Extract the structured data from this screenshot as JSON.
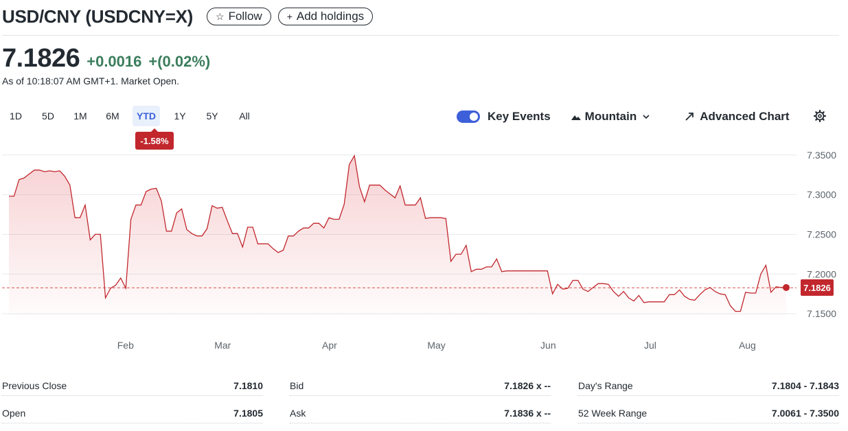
{
  "header": {
    "title": "USD/CNY (USDCNY=X)",
    "follow_label": "Follow",
    "add_holdings_label": "Add holdings"
  },
  "quote": {
    "price": "7.1826",
    "change": "+0.0016",
    "change_pct": "+(0.02%)",
    "as_of": "As of 10:18:07 AM GMT+1. Market Open."
  },
  "range_tabs": [
    "1D",
    "5D",
    "1M",
    "6M",
    "YTD",
    "1Y",
    "5Y",
    "All"
  ],
  "active_range": "YTD",
  "ytd_change_badge": "-1.58%",
  "toolbar": {
    "key_events_label": "Key Events",
    "key_events_on": true,
    "chart_style_label": "Mountain",
    "advanced_chart_label": "Advanced Chart"
  },
  "colors": {
    "line": "#c1272d",
    "positive": "#3a7d5c",
    "accent": "#3d5fd9"
  },
  "chart_data": {
    "type": "area",
    "x_labels": [
      "Feb",
      "Mar",
      "Apr",
      "May",
      "Jun",
      "Jul",
      "Aug"
    ],
    "y_ticks": [
      "7.3500",
      "7.3000",
      "7.2500",
      "7.2000",
      "7.1500"
    ],
    "ylim": [
      7.1475,
      7.355
    ],
    "last_value": "7.1826",
    "reference_line": 7.1826,
    "values": [
      7.298,
      7.298,
      7.319,
      7.321,
      7.326,
      7.331,
      7.331,
      7.329,
      7.33,
      7.329,
      7.33,
      7.323,
      7.312,
      7.271,
      7.271,
      7.287,
      7.243,
      7.25,
      7.25,
      7.17,
      7.182,
      7.186,
      7.195,
      7.182,
      7.269,
      7.287,
      7.287,
      7.304,
      7.307,
      7.308,
      7.292,
      7.254,
      7.254,
      7.277,
      7.282,
      7.256,
      7.251,
      7.248,
      7.248,
      7.257,
      7.286,
      7.283,
      7.284,
      7.267,
      7.251,
      7.251,
      7.234,
      7.259,
      7.259,
      7.238,
      7.238,
      7.238,
      7.232,
      7.227,
      7.23,
      7.248,
      7.248,
      7.254,
      7.258,
      7.258,
      7.264,
      7.264,
      7.258,
      7.271,
      7.269,
      7.269,
      7.288,
      7.338,
      7.349,
      7.31,
      7.291,
      7.312,
      7.312,
      7.312,
      7.306,
      7.301,
      7.296,
      7.311,
      7.287,
      7.287,
      7.287,
      7.296,
      7.27,
      7.271,
      7.271,
      7.271,
      7.27,
      7.216,
      7.225,
      7.225,
      7.236,
      7.203,
      7.206,
      7.206,
      7.209,
      7.209,
      7.219,
      7.203,
      7.204,
      7.204,
      7.204,
      7.204,
      7.204,
      7.204,
      7.204,
      7.204,
      7.204,
      7.175,
      7.187,
      7.181,
      7.182,
      7.192,
      7.192,
      7.181,
      7.178,
      7.183,
      7.188,
      7.188,
      7.187,
      7.178,
      7.172,
      7.178,
      7.17,
      7.166,
      7.173,
      7.164,
      7.165,
      7.165,
      7.165,
      7.165,
      7.174,
      7.174,
      7.18,
      7.172,
      7.168,
      7.167,
      7.174,
      7.18,
      7.183,
      7.178,
      7.175,
      7.174,
      7.16,
      7.153,
      7.153,
      7.177,
      7.176,
      7.176,
      7.2,
      7.211,
      7.177,
      7.184,
      7.183,
      7.183
    ]
  },
  "stats": [
    [
      {
        "label": "Previous Close",
        "value": "7.1810"
      },
      {
        "label": "Open",
        "value": "7.1805"
      }
    ],
    [
      {
        "label": "Bid",
        "value": "7.1826 x --"
      },
      {
        "label": "Ask",
        "value": "7.1836 x --"
      }
    ],
    [
      {
        "label": "Day's Range",
        "value": "7.1804 - 7.1843"
      },
      {
        "label": "52 Week Range",
        "value": "7.0061 - 7.3500"
      }
    ]
  ]
}
